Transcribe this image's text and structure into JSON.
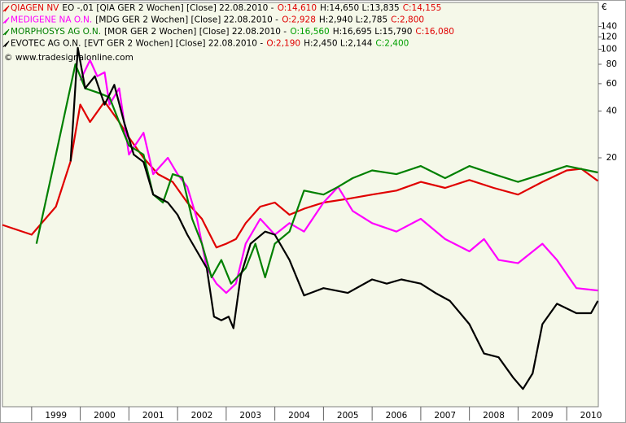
{
  "chart_data": {
    "type": "line",
    "log_scale": true,
    "y_unit": "€",
    "copyright": "© www.tradesignalonline.com",
    "xlim": [
      1998.4,
      2010.65
    ],
    "xticks": [
      1999,
      2000,
      2001,
      2002,
      2003,
      2004,
      2005,
      2006,
      2007,
      2008,
      2009,
      2010
    ],
    "ylim": [
      0.5,
      200
    ],
    "yticks": [
      20,
      40,
      60,
      80,
      100,
      120,
      140
    ],
    "series": [
      {
        "name": "QIAGEN NV",
        "color": "#e00000",
        "detail": "EO -,01 [QIA GER  2 Wochen] [Close] 22.08.2010 -",
        "open": "O:14,610",
        "open_color": "#e00000",
        "high_low": "H:14,650 L:13,835",
        "close": "C:14,155",
        "close_color": "#e00000",
        "x": [
          1998.4,
          1999.0,
          1999.5,
          1999.8,
          2000.0,
          2000.2,
          2000.5,
          2000.8,
          2001.0,
          2001.3,
          2001.6,
          2001.9,
          2002.2,
          2002.5,
          2002.8,
          2003.0,
          2003.2,
          2003.4,
          2003.7,
          2004.0,
          2004.3,
          2004.6,
          2005.0,
          2005.5,
          2006.0,
          2006.5,
          2007.0,
          2007.5,
          2008.0,
          2008.5,
          2009.0,
          2009.5,
          2010.0,
          2010.3,
          2010.64
        ],
        "values": [
          7.4,
          6.4,
          9.7,
          19,
          44,
          34,
          46,
          34,
          27,
          20,
          15.7,
          14,
          10.3,
          8.1,
          5.3,
          5.6,
          6.0,
          7.6,
          9.7,
          10.3,
          8.6,
          9.4,
          10.3,
          10.9,
          11.6,
          12.3,
          14,
          12.8,
          14.4,
          12.8,
          11.6,
          14,
          16.6,
          17,
          14.2
        ]
      },
      {
        "name": "MEDIGENE NA O.N.",
        "color": "#ff00ff",
        "detail": "[MDG GER  2 Wochen] [Close] 22.08.2010 -",
        "open": "O:2,928",
        "open_color": "#e00000",
        "high_low": "H:2,940 L:2,785",
        "close": "C:2,800",
        "close_color": "#e00000",
        "x": [
          2000.0,
          2000.2,
          2000.35,
          2000.5,
          2000.6,
          2000.8,
          2001.0,
          2001.3,
          2001.5,
          2001.8,
          2002.0,
          2002.2,
          2002.4,
          2002.6,
          2002.8,
          2003.0,
          2003.2,
          2003.4,
          2003.7,
          2004.0,
          2004.3,
          2004.6,
          2005.0,
          2005.3,
          2005.6,
          2006.0,
          2006.5,
          2007.0,
          2007.5,
          2008.0,
          2008.3,
          2008.6,
          2009.0,
          2009.5,
          2009.8,
          2010.2,
          2010.64
        ],
        "values": [
          63,
          85,
          67,
          71,
          44,
          56,
          21,
          29,
          15.7,
          20,
          15.7,
          13,
          8.1,
          3.9,
          3.1,
          2.7,
          3.1,
          5.6,
          8.1,
          6.4,
          7.6,
          6.7,
          10.3,
          13,
          9.1,
          7.6,
          6.7,
          8.1,
          6.0,
          5.0,
          6.0,
          4.4,
          4.2,
          5.6,
          4.4,
          2.9,
          2.8
        ]
      },
      {
        "name": "MORPHOSYS AG O.N.",
        "color": "#008000",
        "detail": "[MOR GER  2 Wochen] [Close] 22.08.2010 -",
        "open": "O:16,560",
        "open_color": "#00a000",
        "high_low": "H:16,695 L:15,790",
        "close": "C:16,080",
        "close_color": "#e00000",
        "x": [
          1999.1,
          1999.5,
          1999.9,
          2000.1,
          2000.4,
          2000.6,
          2000.8,
          2001.0,
          2001.3,
          2001.5,
          2001.7,
          2001.9,
          2002.1,
          2002.3,
          2002.5,
          2002.7,
          2002.9,
          2003.1,
          2003.4,
          2003.6,
          2003.8,
          2004.0,
          2004.3,
          2004.6,
          2005.0,
          2005.3,
          2005.6,
          2006.0,
          2006.5,
          2007.0,
          2007.5,
          2008.0,
          2008.5,
          2009.0,
          2009.5,
          2010.0,
          2010.64
        ],
        "values": [
          5.6,
          21,
          80,
          56,
          52,
          49,
          34,
          24,
          21,
          11.6,
          10.3,
          15.7,
          15,
          8.1,
          5.6,
          3.4,
          4.4,
          3.1,
          3.9,
          5.6,
          3.4,
          5.6,
          6.7,
          12.3,
          11.6,
          13,
          14.8,
          16.6,
          15.7,
          17.7,
          14.8,
          17.7,
          15.7,
          14,
          15.7,
          17.7,
          16.1
        ]
      },
      {
        "name": "EVOTEC AG O.N.",
        "color": "#000000",
        "detail": "[EVT GER  2 Wochen] [Close] 22.08.2010 -",
        "open": "O:2,190",
        "open_color": "#e00000",
        "high_low": "H:2,450 L:2,144",
        "close": "C:2,400",
        "close_color": "#00a000",
        "x": [
          1999.8,
          1999.95,
          2000.1,
          2000.3,
          2000.5,
          2000.7,
          2000.9,
          2001.1,
          2001.3,
          2001.5,
          2001.8,
          2002.0,
          2002.2,
          2002.4,
          2002.6,
          2002.75,
          2002.9,
          2003.05,
          2003.15,
          2003.3,
          2003.5,
          2003.8,
          2004.0,
          2004.3,
          2004.6,
          2005.0,
          2005.5,
          2006.0,
          2006.3,
          2006.6,
          2007.0,
          2007.3,
          2007.6,
          2008.0,
          2008.3,
          2008.6,
          2008.9,
          2009.1,
          2009.3,
          2009.5,
          2009.8,
          2010.2,
          2010.5,
          2010.64
        ],
        "values": [
          19,
          102,
          56,
          67,
          44,
          59,
          34,
          21,
          18.8,
          11.6,
          10.3,
          8.6,
          6.4,
          5.0,
          3.9,
          1.9,
          1.8,
          1.9,
          1.6,
          3.5,
          5.6,
          6.7,
          6.4,
          4.4,
          2.6,
          2.9,
          2.7,
          3.3,
          3.1,
          3.3,
          3.1,
          2.7,
          2.4,
          1.7,
          1.1,
          1.04,
          0.77,
          0.65,
          0.82,
          1.7,
          2.3,
          2.0,
          2.0,
          2.4
        ]
      }
    ]
  }
}
